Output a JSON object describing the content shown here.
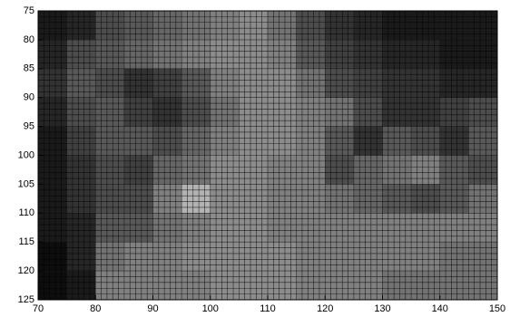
{
  "chart_data": {
    "type": "heatmap",
    "colormap": "gray",
    "xbins": [
      70,
      75,
      80,
      85,
      90,
      95,
      100,
      105,
      110,
      115,
      120,
      125,
      130,
      135,
      140,
      145,
      150
    ],
    "ybins": [
      75,
      80,
      85,
      90,
      95,
      100,
      105,
      110,
      115,
      120,
      125
    ],
    "values": [
      [
        0.1,
        0.15,
        0.3,
        0.35,
        0.4,
        0.45,
        0.5,
        0.55,
        0.45,
        0.3,
        0.2,
        0.15,
        0.1,
        0.1,
        0.1,
        0.1
      ],
      [
        0.15,
        0.3,
        0.35,
        0.4,
        0.45,
        0.5,
        0.55,
        0.55,
        0.5,
        0.35,
        0.25,
        0.2,
        0.15,
        0.15,
        0.1,
        0.1
      ],
      [
        0.2,
        0.35,
        0.3,
        0.2,
        0.25,
        0.35,
        0.5,
        0.55,
        0.55,
        0.45,
        0.3,
        0.25,
        0.2,
        0.2,
        0.15,
        0.15
      ],
      [
        0.15,
        0.3,
        0.35,
        0.25,
        0.2,
        0.3,
        0.45,
        0.55,
        0.55,
        0.5,
        0.45,
        0.3,
        0.2,
        0.2,
        0.25,
        0.3
      ],
      [
        0.1,
        0.25,
        0.35,
        0.35,
        0.3,
        0.4,
        0.5,
        0.55,
        0.55,
        0.5,
        0.35,
        0.2,
        0.35,
        0.3,
        0.2,
        0.35
      ],
      [
        0.1,
        0.2,
        0.3,
        0.25,
        0.4,
        0.45,
        0.55,
        0.55,
        0.5,
        0.5,
        0.3,
        0.4,
        0.45,
        0.5,
        0.35,
        0.3
      ],
      [
        0.1,
        0.2,
        0.3,
        0.3,
        0.5,
        0.7,
        0.55,
        0.55,
        0.5,
        0.5,
        0.45,
        0.4,
        0.35,
        0.3,
        0.35,
        0.45
      ],
      [
        0.1,
        0.15,
        0.35,
        0.35,
        0.45,
        0.5,
        0.55,
        0.55,
        0.5,
        0.5,
        0.5,
        0.5,
        0.5,
        0.5,
        0.5,
        0.5
      ],
      [
        0.05,
        0.15,
        0.45,
        0.5,
        0.5,
        0.55,
        0.55,
        0.55,
        0.55,
        0.5,
        0.5,
        0.5,
        0.5,
        0.5,
        0.45,
        0.45
      ],
      [
        0.05,
        0.1,
        0.5,
        0.5,
        0.5,
        0.5,
        0.55,
        0.55,
        0.55,
        0.5,
        0.5,
        0.5,
        0.45,
        0.45,
        0.45,
        0.45
      ]
    ],
    "xlim": [
      70,
      150
    ],
    "ylim": [
      125,
      75
    ],
    "xticks": [
      70,
      80,
      90,
      100,
      110,
      120,
      130,
      140,
      150
    ],
    "yticks": [
      75,
      80,
      85,
      90,
      95,
      100,
      105,
      110,
      115,
      120,
      125
    ]
  }
}
